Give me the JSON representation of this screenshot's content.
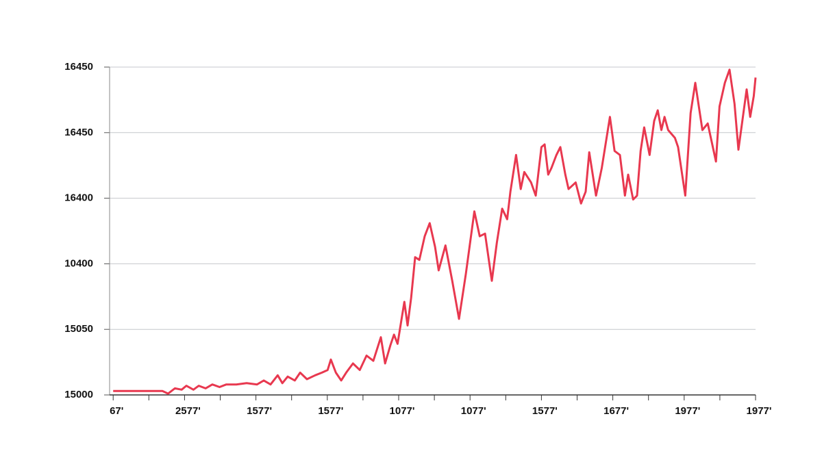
{
  "chart_data": {
    "type": "line",
    "x": [
      0,
      13.8,
      15.4,
      17.3,
      19.2,
      20.5,
      22.5,
      24,
      25.9,
      27.8,
      29.8,
      31.7,
      34.5,
      37.4,
      40.3,
      42.2,
      44.1,
      46.1,
      47.4,
      48.9,
      50.9,
      52.4,
      54.3,
      56.6,
      58.5,
      60.1,
      61,
      62.4,
      63.9,
      65.3,
      67.2,
      69.1,
      71,
      72.9,
      75,
      76.2,
      77.7,
      78.7,
      79.7,
      81.6,
      82.5,
      83.5,
      84.6,
      85.8,
      87.3,
      88.7,
      90.2,
      91.2,
      93.1,
      95,
      96.9,
      98.8,
      101.2,
      102.7,
      104.2,
      106.1,
      107.5,
      109,
      110.4,
      111.3,
      112.9,
      114.2,
      115.2,
      117.1,
      118.4,
      120,
      120.9,
      121.9,
      122.8,
      124.2,
      125.3,
      126.7,
      127.6,
      129.6,
      131.1,
      132.4,
      133.4,
      135.3,
      136.9,
      139.2,
      140.5,
      142,
      143.4,
      144.3,
      145.7,
      146.8,
      147.8,
      148.8,
      150.3,
      151.6,
      152.6,
      153.6,
      154.5,
      155.5,
      157.4,
      158.3,
      160.3,
      161.8,
      163.1,
      165.1,
      166.6,
      168.9,
      169.9,
      171.4,
      172.7,
      174.1,
      175.2,
      176.6,
      177.5,
      178.5,
      179.5,
      180
    ],
    "series": [
      {
        "color": "#e8384f",
        "values": [
          15003,
          15003,
          15001,
          15005,
          15004,
          15007,
          15004,
          15007,
          15005,
          15008,
          15006,
          15008,
          15008,
          15009,
          15008,
          15011,
          15008,
          15015,
          15009,
          15014,
          15011,
          15017,
          15012,
          15015,
          15017,
          15019,
          15027,
          15017,
          15011,
          15017,
          15024,
          15019,
          15030,
          15026,
          15044,
          15024,
          15038,
          15046,
          15039,
          15071,
          15053,
          15074,
          15105,
          15103,
          15121,
          15131,
          15113,
          15095,
          15114,
          15087,
          15058,
          15092,
          15140,
          15121,
          15123,
          15087,
          15116,
          15142,
          15134,
          15155,
          15183,
          15157,
          15170,
          15162,
          15152,
          15189,
          15191,
          15168,
          15173,
          15183,
          15189,
          15168,
          15157,
          15162,
          15146,
          15155,
          15185,
          15152,
          15173,
          15212,
          15186,
          15183,
          15152,
          15168,
          15149,
          15152,
          15186,
          15204,
          15183,
          15209,
          15217,
          15202,
          15212,
          15202,
          15196,
          15189,
          15152,
          15215,
          15238,
          15202,
          15207,
          15178,
          15220,
          15238,
          15248,
          15222,
          15187,
          15215,
          15233,
          15212,
          15228,
          15242
        ]
      }
    ],
    "xlim": [
      -1,
      180
    ],
    "xticks": [
      {
        "value": 0,
        "label": "67'"
      },
      {
        "value": 10,
        "label": null
      },
      {
        "value": 20,
        "label": "2577'"
      },
      {
        "value": 30,
        "label": null
      },
      {
        "value": 40,
        "label": "1577'"
      },
      {
        "value": 50,
        "label": null
      },
      {
        "value": 60,
        "label": "1577'"
      },
      {
        "value": 70,
        "label": null
      },
      {
        "value": 80,
        "label": "1077'"
      },
      {
        "value": 90,
        "label": null
      },
      {
        "value": 100,
        "label": "1077'"
      },
      {
        "value": 110,
        "label": null
      },
      {
        "value": 120,
        "label": "1577'"
      },
      {
        "value": 130,
        "label": null
      },
      {
        "value": 140,
        "label": "1677'"
      },
      {
        "value": 150,
        "label": null
      },
      {
        "value": 160,
        "label": "1977'"
      },
      {
        "value": 170,
        "label": null
      },
      {
        "value": 180,
        "label": "1977'"
      }
    ],
    "ylim": [
      15000,
      15250
    ],
    "yticks": [
      15000,
      15050,
      {
        "value": 15100,
        "label": "10400"
      },
      {
        "value": 15150,
        "label": "16400"
      },
      {
        "value": 15200,
        "label": "16450"
      },
      {
        "value": 15250,
        "label": "16450"
      }
    ],
    "grid": true
  }
}
